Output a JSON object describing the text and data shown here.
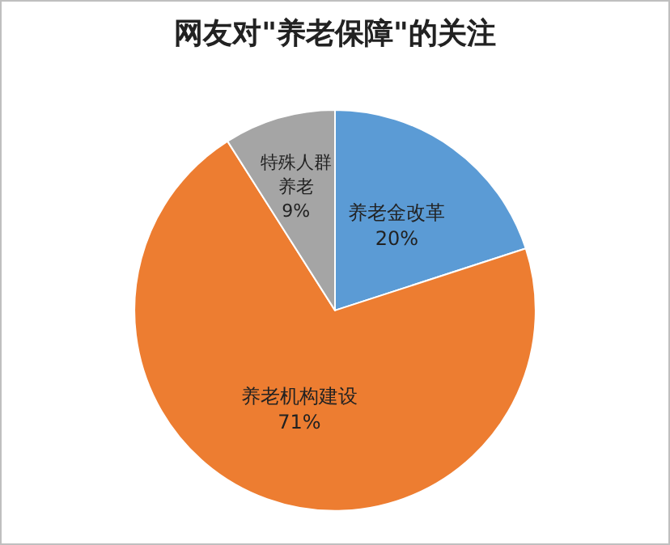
{
  "chart_data": {
    "type": "pie",
    "title": "网友对\"养老保障\"的关注",
    "categories": [
      "养老金改革",
      "养老机构建设",
      "特殊人群养老"
    ],
    "values": [
      20,
      71,
      9
    ],
    "colors": [
      "#5b9bd5",
      "#ed7d31",
      "#a5a5a5"
    ],
    "value_labels": [
      "20%",
      "71%",
      "9%"
    ]
  }
}
